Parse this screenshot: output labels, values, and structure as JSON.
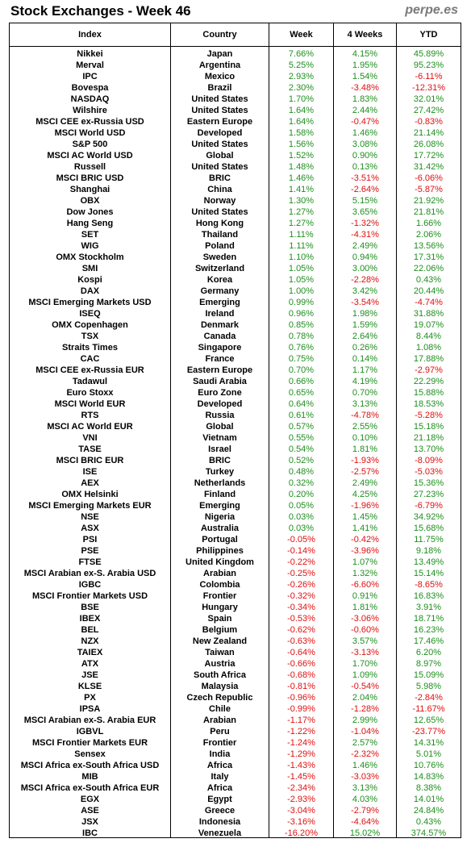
{
  "title": "Stock Exchanges - Week 46",
  "brand": "perpe.es",
  "columns": [
    "Index",
    "Country",
    "Week",
    "4 Weeks",
    "YTD"
  ],
  "rows": [
    [
      "Nikkei",
      "Japan",
      "7.66%",
      "4.15%",
      "45.89%"
    ],
    [
      "Merval",
      "Argentina",
      "5.25%",
      "1.95%",
      "95.23%"
    ],
    [
      "IPC",
      "Mexico",
      "2.93%",
      "1.54%",
      "-6.11%"
    ],
    [
      "Bovespa",
      "Brazil",
      "2.30%",
      "-3.48%",
      "-12.31%"
    ],
    [
      "NASDAQ",
      "United States",
      "1.70%",
      "1.83%",
      "32.01%"
    ],
    [
      "Wilshire",
      "United States",
      "1.64%",
      "2.44%",
      "27.42%"
    ],
    [
      "MSCI CEE ex-Russia USD",
      "Eastern Europe",
      "1.64%",
      "-0.47%",
      "-0.83%"
    ],
    [
      "MSCI World USD",
      "Developed",
      "1.58%",
      "1.46%",
      "21.14%"
    ],
    [
      "S&P 500",
      "United States",
      "1.56%",
      "3.08%",
      "26.08%"
    ],
    [
      "MSCI AC World USD",
      "Global",
      "1.52%",
      "0.90%",
      "17.72%"
    ],
    [
      "Russell",
      "United States",
      "1.48%",
      "0.13%",
      "31.42%"
    ],
    [
      "MSCI BRIC USD",
      "BRIC",
      "1.46%",
      "-3.51%",
      "-6.06%"
    ],
    [
      "Shanghai",
      "China",
      "1.41%",
      "-2.64%",
      "-5.87%"
    ],
    [
      "OBX",
      "Norway",
      "1.30%",
      "5.15%",
      "21.92%"
    ],
    [
      "Dow Jones",
      "United States",
      "1.27%",
      "3.65%",
      "21.81%"
    ],
    [
      "Hang Seng",
      "Hong Kong",
      "1.27%",
      "-1.32%",
      "1.66%"
    ],
    [
      "SET",
      "Thailand",
      "1.11%",
      "-4.31%",
      "2.06%"
    ],
    [
      "WIG",
      "Poland",
      "1.11%",
      "2.49%",
      "13.56%"
    ],
    [
      "OMX Stockholm",
      "Sweden",
      "1.10%",
      "0.94%",
      "17.31%"
    ],
    [
      "SMI",
      "Switzerland",
      "1.05%",
      "3.00%",
      "22.06%"
    ],
    [
      "Kospi",
      "Korea",
      "1.05%",
      "-2.28%",
      "0.43%"
    ],
    [
      "DAX",
      "Germany",
      "1.00%",
      "3.42%",
      "20.44%"
    ],
    [
      "MSCI Emerging Markets USD",
      "Emerging",
      "0.99%",
      "-3.54%",
      "-4.74%"
    ],
    [
      "ISEQ",
      "Ireland",
      "0.96%",
      "1.98%",
      "31.88%"
    ],
    [
      "OMX Copenhagen",
      "Denmark",
      "0.85%",
      "1.59%",
      "19.07%"
    ],
    [
      "TSX",
      "Canada",
      "0.78%",
      "2.64%",
      "8.44%"
    ],
    [
      "Straits Times",
      "Singapore",
      "0.76%",
      "0.26%",
      "1.08%"
    ],
    [
      "CAC",
      "France",
      "0.75%",
      "0.14%",
      "17.88%"
    ],
    [
      "MSCI CEE ex-Russia EUR",
      "Eastern Europe",
      "0.70%",
      "1.17%",
      "-2.97%"
    ],
    [
      "Tadawul",
      "Saudi Arabia",
      "0.66%",
      "4.19%",
      "22.29%"
    ],
    [
      "Euro Stoxx",
      "Euro Zone",
      "0.65%",
      "0.70%",
      "15.88%"
    ],
    [
      "MSCI World EUR",
      "Developed",
      "0.64%",
      "3.13%",
      "18.53%"
    ],
    [
      "RTS",
      "Russia",
      "0.61%",
      "-4.78%",
      "-5.28%"
    ],
    [
      "MSCI AC World EUR",
      "Global",
      "0.57%",
      "2.55%",
      "15.18%"
    ],
    [
      "VNI",
      "Vietnam",
      "0.55%",
      "0.10%",
      "21.18%"
    ],
    [
      "TASE",
      "Israel",
      "0.54%",
      "1.81%",
      "13.70%"
    ],
    [
      "MSCI BRIC EUR",
      "BRIC",
      "0.52%",
      "-1.93%",
      "-8.09%"
    ],
    [
      "ISE",
      "Turkey",
      "0.48%",
      "-2.57%",
      "-5.03%"
    ],
    [
      "AEX",
      "Netherlands",
      "0.32%",
      "2.49%",
      "15.36%"
    ],
    [
      "OMX Helsinki",
      "Finland",
      "0.20%",
      "4.25%",
      "27.23%"
    ],
    [
      "MSCI Emerging Markets EUR",
      "Emerging",
      "0.05%",
      "-1.96%",
      "-6.79%"
    ],
    [
      "NSE",
      "Nigeria",
      "0.03%",
      "1.45%",
      "34.92%"
    ],
    [
      "ASX",
      "Australia",
      "0.03%",
      "1.41%",
      "15.68%"
    ],
    [
      "PSI",
      "Portugal",
      "-0.05%",
      "-0.42%",
      "11.75%"
    ],
    [
      "PSE",
      "Philippines",
      "-0.14%",
      "-3.96%",
      "9.18%"
    ],
    [
      "FTSE",
      "United Kingdom",
      "-0.22%",
      "1.07%",
      "13.49%"
    ],
    [
      "MSCI Arabian ex-S. Arabia USD",
      "Arabian",
      "-0.25%",
      "1.32%",
      "15.14%"
    ],
    [
      "IGBC",
      "Colombia",
      "-0.26%",
      "-6.60%",
      "-8.65%"
    ],
    [
      "MSCI Frontier Markets USD",
      "Frontier",
      "-0.32%",
      "0.91%",
      "16.83%"
    ],
    [
      "BSE",
      "Hungary",
      "-0.34%",
      "1.81%",
      "3.91%"
    ],
    [
      "IBEX",
      "Spain",
      "-0.53%",
      "-3.06%",
      "18.71%"
    ],
    [
      "BEL",
      "Belgium",
      "-0.62%",
      "-0.60%",
      "16.23%"
    ],
    [
      "NZX",
      "New Zealand",
      "-0.63%",
      "3.57%",
      "17.46%"
    ],
    [
      "TAIEX",
      "Taiwan",
      "-0.64%",
      "-3.13%",
      "6.20%"
    ],
    [
      "ATX",
      "Austria",
      "-0.66%",
      "1.70%",
      "8.97%"
    ],
    [
      "JSE",
      "South Africa",
      "-0.68%",
      "1.09%",
      "15.09%"
    ],
    [
      "KLSE",
      "Malaysia",
      "-0.81%",
      "-0.54%",
      "5.98%"
    ],
    [
      "PX",
      "Czech Republic",
      "-0.96%",
      "2.04%",
      "-2.84%"
    ],
    [
      "IPSA",
      "Chile",
      "-0.99%",
      "-1.28%",
      "-11.67%"
    ],
    [
      "MSCI Arabian ex-S. Arabia EUR",
      "Arabian",
      "-1.17%",
      "2.99%",
      "12.65%"
    ],
    [
      "IGBVL",
      "Peru",
      "-1.22%",
      "-1.04%",
      "-23.77%"
    ],
    [
      "MSCI Frontier Markets EUR",
      "Frontier",
      "-1.24%",
      "2.57%",
      "14.31%"
    ],
    [
      "Sensex",
      "India",
      "-1.29%",
      "-2.32%",
      "5.01%"
    ],
    [
      "MSCI Africa ex-South Africa USD",
      "Africa",
      "-1.43%",
      "1.46%",
      "10.76%"
    ],
    [
      "MIB",
      "Italy",
      "-1.45%",
      "-3.03%",
      "14.83%"
    ],
    [
      "MSCI Africa ex-South Africa EUR",
      "Africa",
      "-2.34%",
      "3.13%",
      "8.38%"
    ],
    [
      "EGX",
      "Egypt",
      "-2.93%",
      "4.03%",
      "14.01%"
    ],
    [
      "ASE",
      "Greece",
      "-3.04%",
      "-2.79%",
      "24.84%"
    ],
    [
      "JSX",
      "Indonesia",
      "-3.16%",
      "-4.64%",
      "0.43%"
    ],
    [
      "IBC",
      "Venezuela",
      "-16.20%",
      "15.02%",
      "374.57%"
    ]
  ],
  "colors": {
    "positive": "#1f8f1f",
    "negative": "#e01010",
    "brand": "#7a7a7a"
  }
}
